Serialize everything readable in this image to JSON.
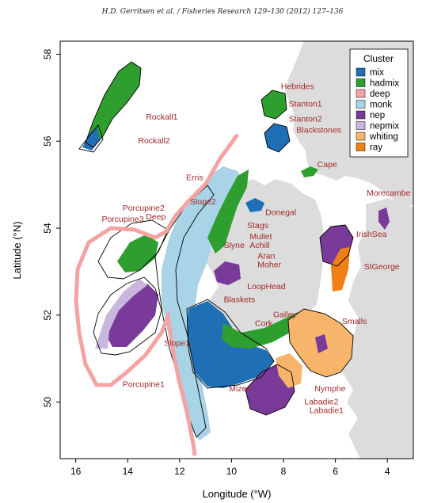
{
  "header": "H.D. Gerritsen et al. / Fisheries Research 129–130 (2012) 127–136",
  "chart_data": {
    "type": "scatter",
    "xlabel": "Longitude (°W)",
    "ylabel": "Latitude (°N)",
    "xlim": [
      16.6,
      3.0
    ],
    "ylim": [
      48.7,
      58.3
    ],
    "xticks": [
      "16",
      "14",
      "12",
      "10",
      "8",
      "6",
      "4"
    ],
    "yticks": [
      "50",
      "52",
      "54",
      "56",
      "58"
    ],
    "legend": {
      "title": "Cluster",
      "position": "top-right",
      "items": [
        {
          "label": "mix",
          "color": "#1f6fb5"
        },
        {
          "label": "hadmix",
          "color": "#2e9e2e"
        },
        {
          "label": "deep",
          "color": "#f4a3a3"
        },
        {
          "label": "monk",
          "color": "#a9d3e6"
        },
        {
          "label": "nep",
          "color": "#7a3a9a"
        },
        {
          "label": "nepmix",
          "color": "#c8b6dd"
        },
        {
          "label": "whiting",
          "color": "#f7b46b"
        },
        {
          "label": "ray",
          "color": "#f07f15"
        }
      ]
    },
    "annotations": [
      {
        "text": "Hebrides",
        "lon": 8.1,
        "lat": 57.2
      },
      {
        "text": "Stanton1",
        "lon": 7.8,
        "lat": 56.8
      },
      {
        "text": "Stanton2",
        "lon": 7.8,
        "lat": 56.45
      },
      {
        "text": "Blackstones",
        "lon": 7.5,
        "lat": 56.2
      },
      {
        "text": "Cape",
        "lon": 6.7,
        "lat": 55.4
      },
      {
        "text": "Rockall1",
        "lon": 13.3,
        "lat": 56.5
      },
      {
        "text": "Rockall2",
        "lon": 13.6,
        "lat": 55.95
      },
      {
        "text": "Erris",
        "lon": 11.75,
        "lat": 55.1
      },
      {
        "text": "Slope2",
        "lon": 11.6,
        "lat": 54.55
      },
      {
        "text": "Porcupine2",
        "lon": 14.2,
        "lat": 54.4
      },
      {
        "text": "Porcupine3",
        "lon": 15.0,
        "lat": 54.15
      },
      {
        "text": "Deep",
        "lon": 13.3,
        "lat": 54.2
      },
      {
        "text": "Donegal",
        "lon": 8.7,
        "lat": 54.3
      },
      {
        "text": "Morecambe",
        "lon": 4.8,
        "lat": 54.75
      },
      {
        "text": "Stags",
        "lon": 9.4,
        "lat": 54.0
      },
      {
        "text": "Mullet",
        "lon": 9.3,
        "lat": 53.75
      },
      {
        "text": "Achill",
        "lon": 9.3,
        "lat": 53.55
      },
      {
        "text": "IrishSea",
        "lon": 5.2,
        "lat": 53.8
      },
      {
        "text": "Slyne",
        "lon": 10.3,
        "lat": 53.55
      },
      {
        "text": "Aran",
        "lon": 9.0,
        "lat": 53.3
      },
      {
        "text": "Moher",
        "lon": 9.0,
        "lat": 53.1
      },
      {
        "text": "StGeorge",
        "lon": 4.9,
        "lat": 53.05
      },
      {
        "text": "LoopHead",
        "lon": 9.4,
        "lat": 52.6
      },
      {
        "text": "Blaskets",
        "lon": 10.3,
        "lat": 52.3
      },
      {
        "text": "Galley",
        "lon": 8.4,
        "lat": 51.95
      },
      {
        "text": "Cork",
        "lon": 9.1,
        "lat": 51.75
      },
      {
        "text": "Smalls",
        "lon": 5.75,
        "lat": 51.8
      },
      {
        "text": "Slope1",
        "lon": 12.6,
        "lat": 51.3
      },
      {
        "text": "Porcupine1",
        "lon": 14.2,
        "lat": 50.35
      },
      {
        "text": "Mizen",
        "lon": 10.1,
        "lat": 50.25
      },
      {
        "text": "Nymphe",
        "lon": 6.8,
        "lat": 50.25
      },
      {
        "text": "Labadie2",
        "lon": 7.2,
        "lat": 49.95
      },
      {
        "text": "Labadie1",
        "lon": 7.0,
        "lat": 49.75
      }
    ]
  }
}
